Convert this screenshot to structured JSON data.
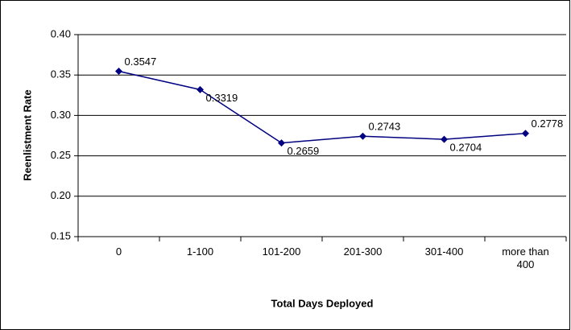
{
  "chart_data": {
    "type": "line",
    "x_label": "Total Days Deployed",
    "y_label": "Reenlistment Rate",
    "categories": [
      "0",
      "1-100",
      "101-200",
      "201-300",
      "301-400",
      "more than 400"
    ],
    "series": [
      {
        "name": "Reenlistment Rate",
        "color": "#000080",
        "values": [
          0.3547,
          0.3319,
          0.2659,
          0.2743,
          0.2704,
          0.2778
        ]
      }
    ],
    "ylim": [
      0.15,
      0.4
    ],
    "yticks": [
      0.15,
      {
        "value": 0.2,
        "label": "0.20"
      },
      0.25,
      {
        "value": 0.3,
        "label": "0.30"
      },
      0.35,
      {
        "value": 0.4,
        "label": "0.40"
      }
    ],
    "grid": true
  }
}
